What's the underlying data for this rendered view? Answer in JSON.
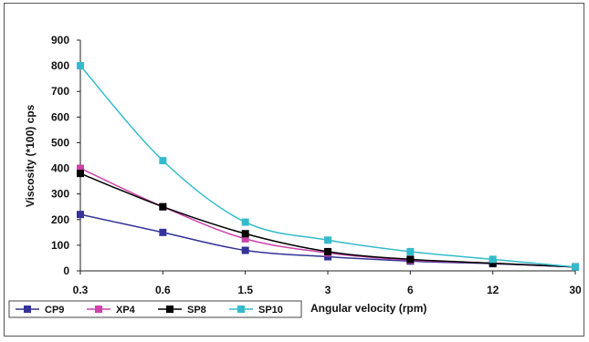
{
  "chart_data": {
    "type": "line",
    "title": "",
    "xlabel": "Angular velocity (rpm)",
    "ylabel": "Viscosity (*100) cps",
    "categories": [
      "0.3",
      "0.6",
      "1.5",
      "3",
      "6",
      "12",
      "30"
    ],
    "ylim": [
      0,
      900
    ],
    "yticks": [
      0,
      100,
      200,
      300,
      400,
      500,
      600,
      700,
      800,
      900
    ],
    "grid": false,
    "legend_position": "bottom-left",
    "series": [
      {
        "name": "CP9",
        "color": "#333399",
        "values": [
          220,
          150,
          80,
          55,
          38,
          28,
          15
        ]
      },
      {
        "name": "XP4",
        "color": "#cc44aa",
        "values": [
          400,
          250,
          125,
          70,
          42,
          30,
          15
        ]
      },
      {
        "name": "SP8",
        "color": "#000000",
        "values": [
          380,
          250,
          145,
          75,
          45,
          30,
          15
        ]
      },
      {
        "name": "SP10",
        "color": "#33bbcc",
        "values": [
          800,
          430,
          190,
          120,
          75,
          45,
          15
        ]
      }
    ]
  }
}
